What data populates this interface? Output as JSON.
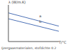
{
  "chart_data": {
    "type": "line",
    "title": "Ijzergaasmaterialen, stofdichte 0.2",
    "x_label": "T/°C",
    "y_label": "λ (W/m.K)",
    "x": [
      0,
      0.5,
      1
    ],
    "series": [
      {
        "name": "a",
        "color": "#4a6fb5",
        "values": [
          0.78,
          0.6,
          0.42
        ]
      },
      {
        "name": "b",
        "color": "#4a6fb5",
        "values": [
          0.62,
          0.45,
          0.28
        ]
      }
    ],
    "xlim": [
      0,
      1
    ],
    "ylim": [
      0,
      1
    ],
    "xticks": [
      0,
      0.5,
      1
    ],
    "yticks": [
      0,
      0.5,
      1
    ],
    "grid": false,
    "tick_labels": false
  }
}
